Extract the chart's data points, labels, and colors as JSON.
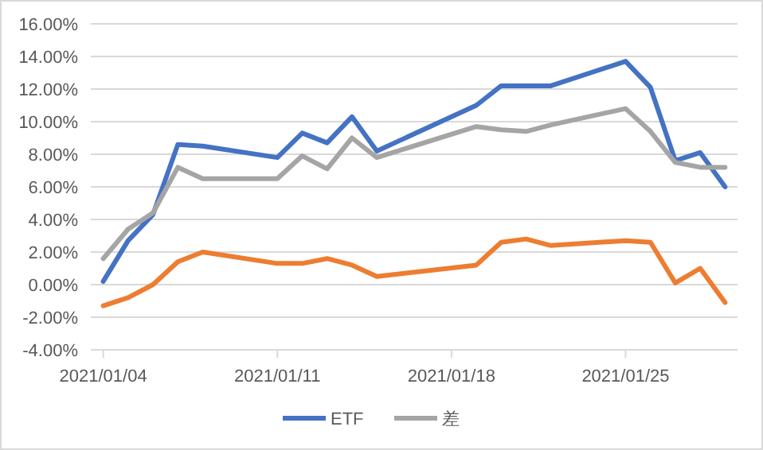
{
  "chart_data": {
    "type": "line",
    "x": [
      "2021-01-04",
      "2021-01-05",
      "2021-01-06",
      "2021-01-07",
      "2021-01-08",
      "2021-01-11",
      "2021-01-12",
      "2021-01-13",
      "2021-01-14",
      "2021-01-15",
      "2021-01-19",
      "2021-01-20",
      "2021-01-21",
      "2021-01-22",
      "2021-01-25",
      "2021-01-26",
      "2021-01-27",
      "2021-01-28",
      "2021-01-29"
    ],
    "series": [
      {
        "name": "ETF",
        "color": "#4472c4",
        "values": [
          0.2,
          2.7,
          4.3,
          8.6,
          8.5,
          7.8,
          9.3,
          8.7,
          10.3,
          8.2,
          11.0,
          12.2,
          12.2,
          12.2,
          13.7,
          12.1,
          7.6,
          8.1,
          6.0
        ]
      },
      {
        "color": "#ed7d31",
        "values": [
          -1.3,
          -0.8,
          0.0,
          1.4,
          2.0,
          1.3,
          1.3,
          1.6,
          1.2,
          0.5,
          1.2,
          2.6,
          2.8,
          2.4,
          2.7,
          2.6,
          0.1,
          1.0,
          -1.1
        ]
      },
      {
        "name": "差",
        "color": "#a5a5a5",
        "values": [
          1.6,
          3.4,
          4.4,
          7.2,
          6.5,
          6.5,
          7.9,
          7.1,
          9.0,
          7.8,
          9.7,
          9.5,
          9.4,
          9.8,
          10.8,
          9.4,
          7.5,
          7.2,
          7.2
        ]
      }
    ],
    "xlim": [
      "2021-01-03T12:00",
      "2021-01-29T12:00"
    ],
    "xticks": [
      {
        "value": "2021-01-04",
        "label": "2021/01/04"
      },
      {
        "value": "2021-01-11",
        "label": "2021/01/11"
      },
      {
        "value": "2021-01-18",
        "label": "2021/01/18"
      },
      {
        "value": "2021-01-25",
        "label": "2021/01/25"
      }
    ],
    "ylim": [
      -4,
      16
    ],
    "yticks": [
      {
        "value": -4,
        "label": "-4.00%"
      },
      {
        "value": -2,
        "label": "-2.00%"
      },
      {
        "value": 0,
        "label": "0.00%"
      },
      {
        "value": 2,
        "label": "2.00%"
      },
      {
        "value": 4,
        "label": "4.00%"
      },
      {
        "value": 6,
        "label": "6.00%"
      },
      {
        "value": 8,
        "label": "8.00%"
      },
      {
        "value": 10,
        "label": "10.00%"
      },
      {
        "value": 12,
        "label": "12.00%"
      },
      {
        "value": 14,
        "label": "14.00%"
      },
      {
        "value": 16,
        "label": "16.00%"
      }
    ],
    "grid": "y",
    "legend": "bottom",
    "marker": "none",
    "line_style": "solid"
  }
}
